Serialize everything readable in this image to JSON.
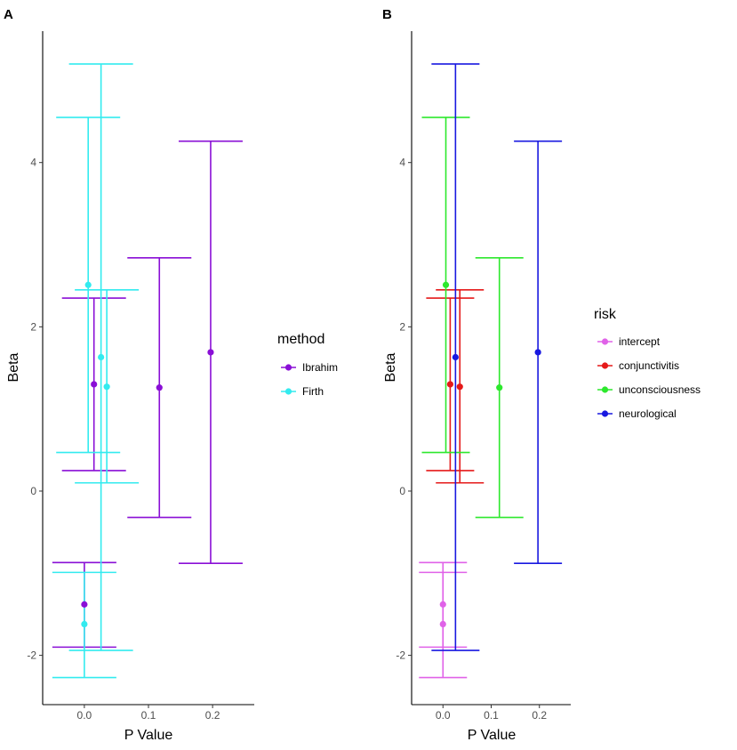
{
  "chart_data": [
    {
      "type": "scatter",
      "panel_label": "A",
      "xlabel": "P Value",
      "ylabel": "Beta",
      "xlim": [
        -0.065,
        0.265
      ],
      "ylim": [
        -2.6,
        5.6
      ],
      "xticks": [
        0.0,
        0.1,
        0.2
      ],
      "xtick_labels": [
        "0.0",
        "0.1",
        "0.2"
      ],
      "yticks": [
        -2,
        0,
        2,
        4
      ],
      "ytick_labels": [
        "-2",
        "0",
        "2",
        "4"
      ],
      "grid": false,
      "legend": {
        "title": "method",
        "position": "right"
      },
      "series": [
        {
          "name": "Ibrahim",
          "color": "#8a0fd6",
          "points": [
            {
              "x": 0.0,
              "y": -1.38,
              "low": -1.9,
              "high": -0.87
            },
            {
              "x": 0.015,
              "y": 1.3,
              "low": 0.25,
              "high": 2.35
            },
            {
              "x": 0.117,
              "y": 1.26,
              "low": -0.32,
              "high": 2.84
            },
            {
              "x": 0.197,
              "y": 1.69,
              "low": -0.88,
              "high": 4.26
            }
          ]
        },
        {
          "name": "Firth",
          "color": "#33ebef",
          "points": [
            {
              "x": 0.0,
              "y": -1.62,
              "low": -2.27,
              "high": -0.99
            },
            {
              "x": 0.006,
              "y": 2.51,
              "low": 0.47,
              "high": 4.55
            },
            {
              "x": 0.026,
              "y": 1.63,
              "low": -1.94,
              "high": 5.2
            },
            {
              "x": 0.035,
              "y": 1.27,
              "low": 0.1,
              "high": 2.45
            }
          ]
        }
      ]
    },
    {
      "type": "scatter",
      "panel_label": "B",
      "xlabel": "P Value",
      "ylabel": "Beta",
      "xlim": [
        -0.065,
        0.265
      ],
      "ylim": [
        -2.6,
        5.6
      ],
      "xticks": [
        0.0,
        0.1,
        0.2
      ],
      "xtick_labels": [
        "0.0",
        "0.1",
        "0.2"
      ],
      "yticks": [
        -2,
        0,
        2,
        4
      ],
      "ytick_labels": [
        "-2",
        "0",
        "2",
        "4"
      ],
      "grid": false,
      "legend": {
        "title": "risk",
        "position": "right"
      },
      "series": [
        {
          "name": "intercept",
          "color": "#e062e8",
          "points": [
            {
              "x": 0.0,
              "y": -1.38,
              "low": -1.9,
              "high": -0.87
            },
            {
              "x": 0.0,
              "y": -1.62,
              "low": -2.27,
              "high": -0.99
            }
          ]
        },
        {
          "name": "conjunctivitis",
          "color": "#e51919",
          "points": [
            {
              "x": 0.015,
              "y": 1.3,
              "low": 0.25,
              "high": 2.35
            },
            {
              "x": 0.035,
              "y": 1.27,
              "low": 0.1,
              "high": 2.45
            }
          ]
        },
        {
          "name": "unconsciousness",
          "color": "#2de82d",
          "points": [
            {
              "x": 0.006,
              "y": 2.51,
              "low": 0.47,
              "high": 4.55
            },
            {
              "x": 0.117,
              "y": 1.26,
              "low": -0.32,
              "high": 2.84
            }
          ]
        },
        {
          "name": "neurological",
          "color": "#1818e0",
          "points": [
            {
              "x": 0.026,
              "y": 1.63,
              "low": -1.94,
              "high": 5.2
            },
            {
              "x": 0.197,
              "y": 1.69,
              "low": -0.88,
              "high": 4.26
            }
          ]
        }
      ]
    }
  ]
}
